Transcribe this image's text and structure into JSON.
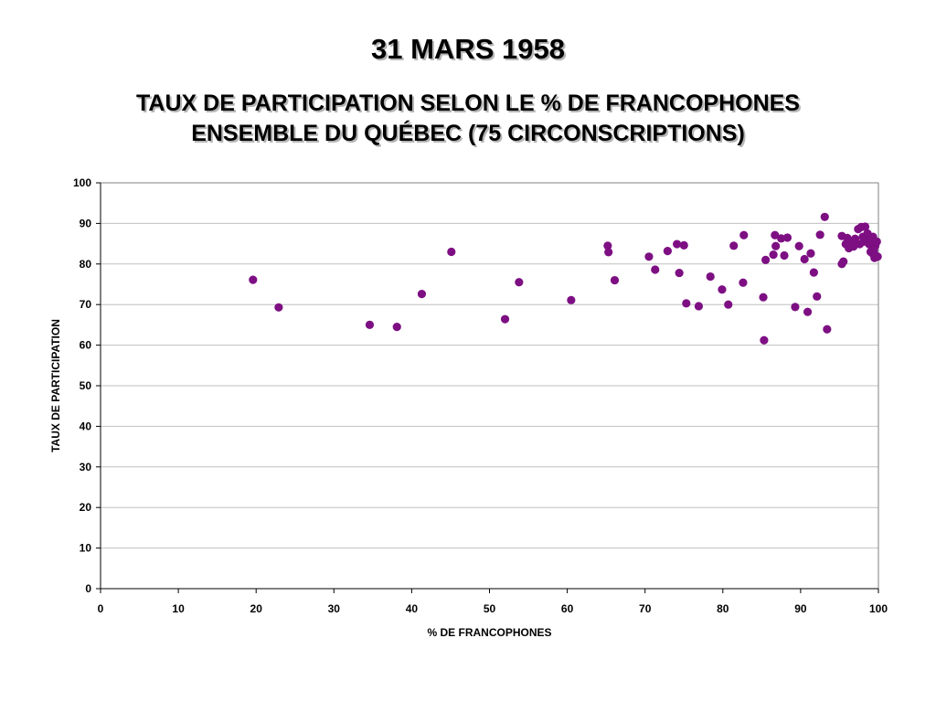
{
  "title": "31 MARS 1958",
  "subtitle_lines": [
    "TAUX DE PARTICIPATION SELON LE % DE FRANCOPHONES",
    "ENSEMBLE DU QUÉBEC (75 CIRCONSCRIPTIONS)"
  ],
  "colors": {
    "point": "#7d0f83",
    "grid": "#c0c0c0",
    "axis": "#808080"
  },
  "chart_data": {
    "type": "scatter",
    "xlabel": "% DE FRANCOPHONES",
    "ylabel": "TAUX DE PARTICIPATION",
    "xlim": [
      0,
      100
    ],
    "ylim": [
      0,
      100
    ],
    "x_ticks": [
      0,
      10,
      20,
      30,
      40,
      50,
      60,
      70,
      80,
      90,
      100
    ],
    "y_ticks": [
      0,
      10,
      20,
      30,
      40,
      50,
      60,
      70,
      80,
      90,
      100
    ],
    "grid": "horizontal",
    "points": [
      [
        19.6,
        76.1
      ],
      [
        22.9,
        69.3
      ],
      [
        34.6,
        65.0
      ],
      [
        38.1,
        64.5
      ],
      [
        41.3,
        72.6
      ],
      [
        45.1,
        83.0
      ],
      [
        52.0,
        66.4
      ],
      [
        53.8,
        75.5
      ],
      [
        60.5,
        71.1
      ],
      [
        65.2,
        84.5
      ],
      [
        65.3,
        82.9
      ],
      [
        66.1,
        76.0
      ],
      [
        70.5,
        81.8
      ],
      [
        71.3,
        78.6
      ],
      [
        72.9,
        83.2
      ],
      [
        74.1,
        84.9
      ],
      [
        74.4,
        77.8
      ],
      [
        75.0,
        84.6
      ],
      [
        75.3,
        70.3
      ],
      [
        76.9,
        69.6
      ],
      [
        78.4,
        76.9
      ],
      [
        79.9,
        73.7
      ],
      [
        80.7,
        70.0
      ],
      [
        81.4,
        84.5
      ],
      [
        82.6,
        75.4
      ],
      [
        82.7,
        87.1
      ],
      [
        85.2,
        71.8
      ],
      [
        85.3,
        61.2
      ],
      [
        85.5,
        81.0
      ],
      [
        86.5,
        82.3
      ],
      [
        86.7,
        87.1
      ],
      [
        86.8,
        84.4
      ],
      [
        87.5,
        86.3
      ],
      [
        87.9,
        82.1
      ],
      [
        88.3,
        86.5
      ],
      [
        89.3,
        69.4
      ],
      [
        89.8,
        84.4
      ],
      [
        90.5,
        81.2
      ],
      [
        90.9,
        68.2
      ],
      [
        91.3,
        82.6
      ],
      [
        91.7,
        77.9
      ],
      [
        92.1,
        72.0
      ],
      [
        92.5,
        87.2
      ],
      [
        93.1,
        91.6
      ],
      [
        93.4,
        63.9
      ],
      [
        95.3,
        86.9
      ],
      [
        95.3,
        80.0
      ],
      [
        95.5,
        80.6
      ],
      [
        95.8,
        84.9
      ],
      [
        96.0,
        86.4
      ],
      [
        96.2,
        83.9
      ],
      [
        96.5,
        85.5
      ],
      [
        96.8,
        84.3
      ],
      [
        97.0,
        86.2
      ],
      [
        97.2,
        85.0
      ],
      [
        97.4,
        88.6
      ],
      [
        97.6,
        84.9
      ],
      [
        97.8,
        89.1
      ],
      [
        98.0,
        86.7
      ],
      [
        98.1,
        85.5
      ],
      [
        98.3,
        89.2
      ],
      [
        98.4,
        86.0
      ],
      [
        98.6,
        87.5
      ],
      [
        98.8,
        84.9
      ],
      [
        98.9,
        86.3
      ],
      [
        99.0,
        83.0
      ],
      [
        99.1,
        85.4
      ],
      [
        99.2,
        82.7
      ],
      [
        99.3,
        86.7
      ],
      [
        99.4,
        83.3
      ],
      [
        99.5,
        81.5
      ],
      [
        99.6,
        84.5
      ],
      [
        99.7,
        82.0
      ],
      [
        99.8,
        85.5
      ],
      [
        99.9,
        81.8
      ]
    ]
  }
}
